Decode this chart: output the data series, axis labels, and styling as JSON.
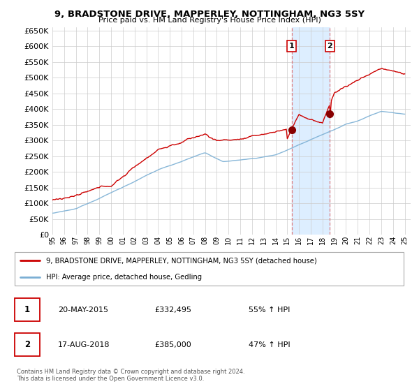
{
  "title": "9, BRADSTONE DRIVE, MAPPERLEY, NOTTINGHAM, NG3 5SY",
  "subtitle": "Price paid vs. HM Land Registry's House Price Index (HPI)",
  "xlim_start": 1995.0,
  "xlim_end": 2025.5,
  "ylim_min": 0,
  "ylim_max": 660000,
  "yticks": [
    0,
    50000,
    100000,
    150000,
    200000,
    250000,
    300000,
    350000,
    400000,
    450000,
    500000,
    550000,
    600000,
    650000
  ],
  "sale1_date": 2015.38,
  "sale1_price": 332495,
  "sale2_date": 2018.63,
  "sale2_price": 385000,
  "legend_line1": "9, BRADSTONE DRIVE, MAPPERLEY, NOTTINGHAM, NG3 5SY (detached house)",
  "legend_line2": "HPI: Average price, detached house, Gedling",
  "table_row1_num": "1",
  "table_row1_date": "20-MAY-2015",
  "table_row1_price": "£332,495",
  "table_row1_hpi": "55% ↑ HPI",
  "table_row2_num": "2",
  "table_row2_date": "17-AUG-2018",
  "table_row2_price": "£385,000",
  "table_row2_hpi": "47% ↑ HPI",
  "footnote1": "Contains HM Land Registry data © Crown copyright and database right 2024.",
  "footnote2": "This data is licensed under the Open Government Licence v3.0.",
  "red_color": "#cc0000",
  "blue_color": "#7bafd4",
  "highlight_bg": "#ddeeff",
  "grid_color": "#cccccc",
  "bg_color": "#ffffff"
}
